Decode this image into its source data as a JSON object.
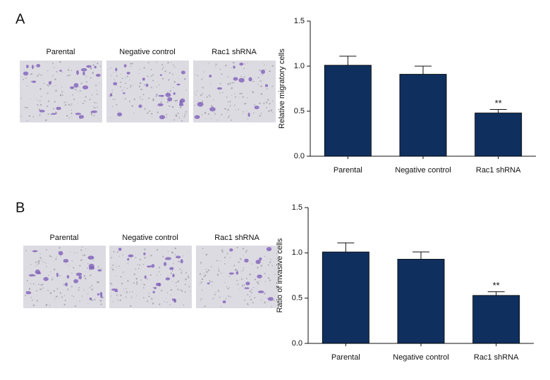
{
  "panels": [
    {
      "label": "A",
      "image_labels": [
        "Parental",
        "Negative control",
        "Rac1 shRNA"
      ]
    },
    {
      "label": "B",
      "image_labels": [
        "Parental",
        "Negative control",
        "Rac1 shRNA"
      ]
    }
  ],
  "chart_data": [
    {
      "type": "bar",
      "y_label": "Relative migratory cells",
      "categories": [
        "Parental",
        "Negative control",
        "Rac1 shRNA"
      ],
      "values": [
        1.01,
        0.91,
        0.48
      ],
      "errors": [
        0.1,
        0.09,
        0.04
      ],
      "value_annotations": [
        null,
        null,
        "**"
      ],
      "color": "#0f2f5e",
      "ylim": [
        0,
        1.5
      ],
      "yticks": [
        {
          "value": 0,
          "label": "0.0"
        },
        0.5,
        {
          "value": 1,
          "label": "1.0"
        },
        1.5
      ]
    },
    {
      "type": "bar",
      "y_label": "Ratio of invasive cells",
      "categories": [
        "Parental",
        "Negative control",
        "Rac1 shRNA"
      ],
      "values": [
        1.01,
        0.93,
        0.53
      ],
      "errors": [
        0.1,
        0.08,
        0.04
      ],
      "value_annotations": [
        null,
        null,
        "**"
      ],
      "color": "#0f2f5e",
      "ylim": [
        0,
        1.5
      ],
      "yticks": [
        {
          "value": 0,
          "label": "0.0"
        },
        0.5,
        {
          "value": 1,
          "label": "1.0"
        },
        1.5
      ]
    }
  ]
}
